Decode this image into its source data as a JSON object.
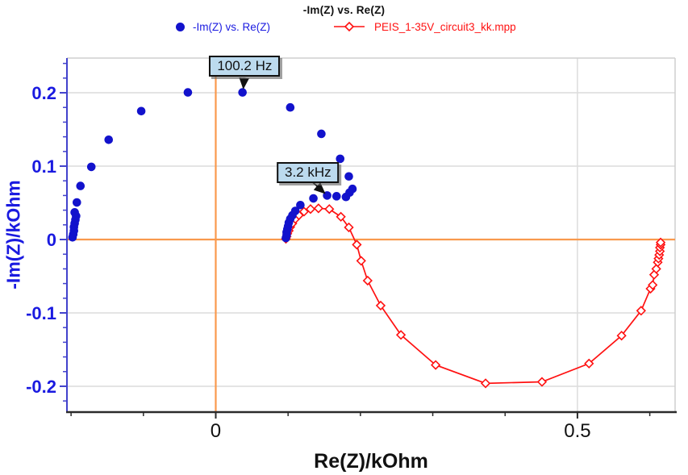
{
  "title": "-Im(Z) vs. Re(Z)",
  "legend": {
    "series1": {
      "label": "-Im(Z) vs. Re(Z)",
      "color": "#1212cc",
      "marker": "filled-circle"
    },
    "series2": {
      "label": "PEIS_1-35V_circuit3_kk.mpp",
      "color": "#ff1111",
      "marker": "line-open-diamond"
    }
  },
  "chart_data": {
    "type": "scatter",
    "title": "-Im(Z) vs. Re(Z)",
    "xlabel": "Re(Z)/kOhm",
    "ylabel": "-Im(Z)/kOhm",
    "xlim": [
      -0.2057,
      0.635
    ],
    "ylim": [
      -0.2352,
      0.2473
    ],
    "grid": true,
    "x_ticks": [
      {
        "v": -0.2,
        "label": ""
      },
      {
        "v": -0.1,
        "label": ""
      },
      {
        "v": 0,
        "label": "0"
      },
      {
        "v": 0.1,
        "label": ""
      },
      {
        "v": 0.2,
        "label": ""
      },
      {
        "v": 0.3,
        "label": ""
      },
      {
        "v": 0.4,
        "label": ""
      },
      {
        "v": 0.5,
        "label": "0.5"
      },
      {
        "v": 0.6,
        "label": ""
      }
    ],
    "y_ticks": [
      {
        "v": 0.2,
        "label": "0.2"
      },
      {
        "v": 0.1,
        "label": "0.1"
      },
      {
        "v": 0,
        "label": "0"
      },
      {
        "v": -0.1,
        "label": "-0.1"
      },
      {
        "v": -0.2,
        "label": "-0.2"
      }
    ],
    "y_minor_step": 0.02,
    "grid_x": [
      0.5
    ],
    "grid_y": [
      0.2,
      0.1,
      -0.1,
      -0.2
    ],
    "origin_line_color": "#f9994d",
    "grid_color": "#dcdcdc",
    "series": [
      {
        "name": "PEIS_1-35V_circuit3_kk.mpp",
        "color": "#ff1111",
        "marker": "open-diamond",
        "line": true,
        "points": [
          [
            0.097,
            0.001
          ],
          [
            0.098,
            0.004
          ],
          [
            0.099,
            0.008
          ],
          [
            0.101,
            0.012
          ],
          [
            0.103,
            0.017
          ],
          [
            0.106,
            0.022
          ],
          [
            0.11,
            0.028
          ],
          [
            0.115,
            0.033
          ],
          [
            0.122,
            0.038
          ],
          [
            0.131,
            0.0415
          ],
          [
            0.142,
            0.0425
          ],
          [
            0.157,
            0.0415
          ],
          [
            0.173,
            0.031
          ],
          [
            0.184,
            0.0165
          ],
          [
            0.195,
            -0.007
          ],
          [
            0.201,
            -0.029
          ],
          [
            0.21,
            -0.056
          ],
          [
            0.228,
            -0.09
          ],
          [
            0.256,
            -0.13
          ],
          [
            0.304,
            -0.171
          ],
          [
            0.373,
            -0.196
          ],
          [
            0.451,
            -0.194
          ],
          [
            0.516,
            -0.169
          ],
          [
            0.561,
            -0.131
          ],
          [
            0.588,
            -0.097
          ],
          [
            0.601,
            -0.067
          ],
          [
            0.604,
            -0.062
          ],
          [
            0.606,
            -0.048
          ],
          [
            0.609,
            -0.04
          ],
          [
            0.611,
            -0.031
          ],
          [
            0.612,
            -0.026
          ],
          [
            0.613,
            -0.021
          ],
          [
            0.614,
            -0.016
          ],
          [
            0.614,
            -0.011
          ],
          [
            0.615,
            -0.007
          ],
          [
            0.615,
            -0.004
          ]
        ]
      },
      {
        "name": "-Im(Z) vs. Re(Z)",
        "color": "#1212cc",
        "marker": "filled-circle",
        "line": false,
        "points": [
          [
            -0.198,
            0.003
          ],
          [
            -0.197,
            0.007
          ],
          [
            -0.196,
            0.012
          ],
          [
            -0.196,
            0.017
          ],
          [
            -0.195,
            0.022
          ],
          [
            -0.194,
            0.027
          ],
          [
            -0.193,
            0.032
          ],
          [
            -0.195,
            0.037
          ],
          [
            -0.192,
            0.0505
          ],
          [
            -0.187,
            0.073
          ],
          [
            -0.172,
            0.099
          ],
          [
            -0.148,
            0.136
          ],
          [
            -0.103,
            0.175
          ],
          [
            -0.0385,
            0.2005
          ],
          [
            0.037,
            0.2005
          ],
          [
            0.103,
            0.18
          ],
          [
            0.146,
            0.144
          ],
          [
            0.172,
            0.11
          ],
          [
            0.184,
            0.086
          ],
          [
            0.189,
            0.069
          ],
          [
            0.185,
            0.064
          ],
          [
            0.18,
            0.058
          ],
          [
            0.167,
            0.059
          ],
          [
            0.154,
            0.06
          ],
          [
            0.135,
            0.056
          ],
          [
            0.117,
            0.047
          ],
          [
            0.11,
            0.039
          ],
          [
            0.106,
            0.033
          ],
          [
            0.103,
            0.028
          ],
          [
            0.101,
            0.023
          ],
          [
            0.1,
            0.018
          ],
          [
            0.099,
            0.014
          ],
          [
            0.098,
            0.01
          ],
          [
            0.098,
            0.006
          ],
          [
            0.097,
            0.002
          ]
        ]
      }
    ],
    "annotations": [
      {
        "label": "100.2 Hz",
        "box_center": [
          0.04,
          0.236
        ],
        "arrow_from": [
          0.0393,
          0.2205
        ],
        "arrow_to": [
          0.0382,
          0.2065
        ]
      },
      {
        "label": "3.2 kHz",
        "box_center": [
          0.1275,
          0.0915
        ],
        "arrow_from": [
          0.1335,
          0.0785
        ],
        "arrow_to": [
          0.1503,
          0.0635
        ]
      }
    ]
  }
}
